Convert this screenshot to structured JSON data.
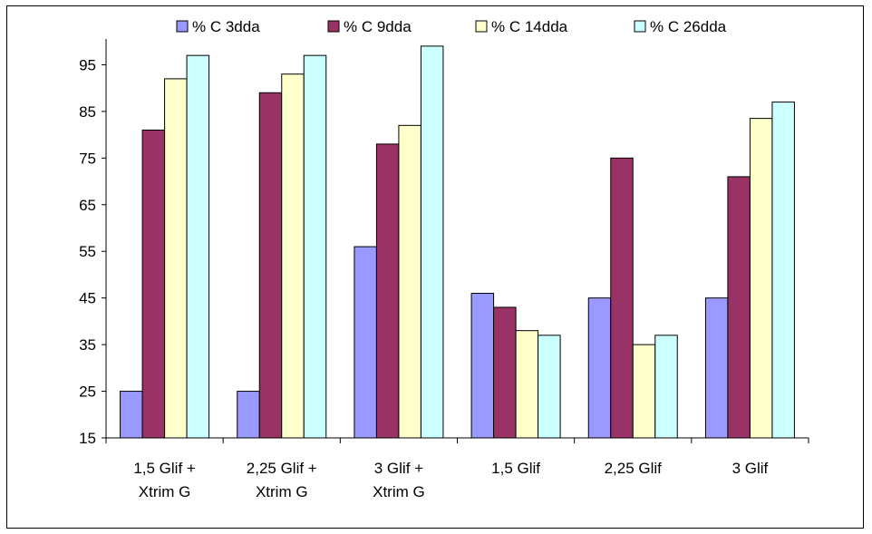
{
  "chart_data": {
    "type": "bar",
    "title": "",
    "xlabel": "",
    "ylabel": "",
    "ylim": [
      15,
      105
    ],
    "yticks": [
      15,
      25,
      35,
      45,
      55,
      65,
      75,
      85,
      95
    ],
    "grid": false,
    "legend_position": "top",
    "categories": [
      [
        "1,5 Glif +",
        "Xtrim G"
      ],
      [
        "2,25 Glif +",
        "Xtrim G"
      ],
      [
        "3 Glif +",
        "Xtrim G"
      ],
      [
        "1,5 Glif"
      ],
      [
        "2,25 Glif"
      ],
      [
        "3 Glif"
      ]
    ],
    "series": [
      {
        "name": "% C 3dda",
        "color": "#9999ff",
        "values": [
          25,
          25,
          56,
          46,
          45,
          45
        ]
      },
      {
        "name": "% C 9dda",
        "color": "#993366",
        "values": [
          81,
          89,
          78,
          43,
          75,
          71
        ]
      },
      {
        "name": "% C 14dda",
        "color": "#ffffcc",
        "values": [
          92,
          93,
          82,
          38,
          35,
          83.5
        ]
      },
      {
        "name": "% C 26dda",
        "color": "#ccffff",
        "values": [
          97,
          97,
          99,
          37,
          37,
          87
        ]
      }
    ]
  }
}
